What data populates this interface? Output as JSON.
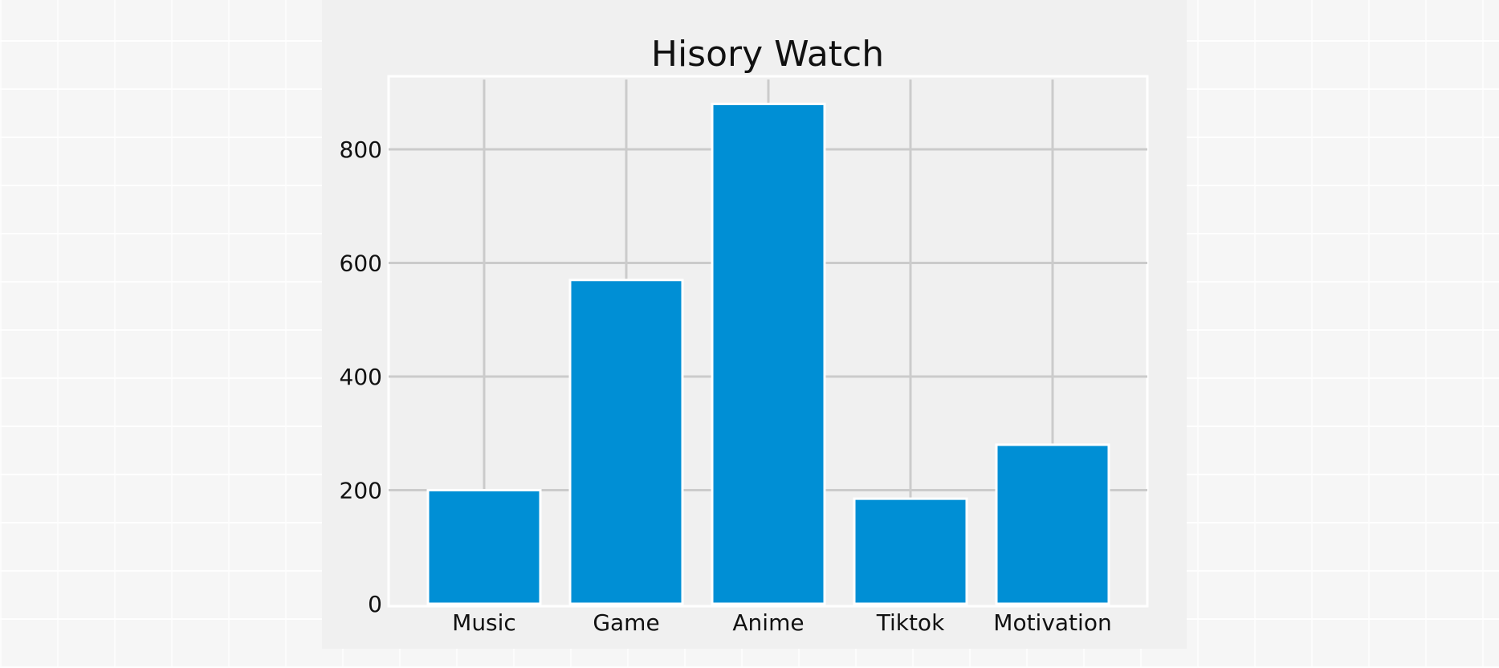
{
  "colors": {
    "bar": "#008fd5",
    "axes_background": "#f0f0f0",
    "grid": "#cbcbcb",
    "text": "#111111"
  },
  "chart_data": {
    "type": "bar",
    "title": "Hisory Watch",
    "xlabel": "",
    "ylabel": "",
    "categories": [
      "Music",
      "Game",
      "Anime",
      "Tiktok",
      "Motivation"
    ],
    "values": [
      200,
      570,
      880,
      185,
      280
    ],
    "ylim": [
      0,
      920
    ],
    "yticks": [
      0,
      200,
      400,
      600,
      800
    ],
    "grid": true,
    "legend": "none"
  }
}
